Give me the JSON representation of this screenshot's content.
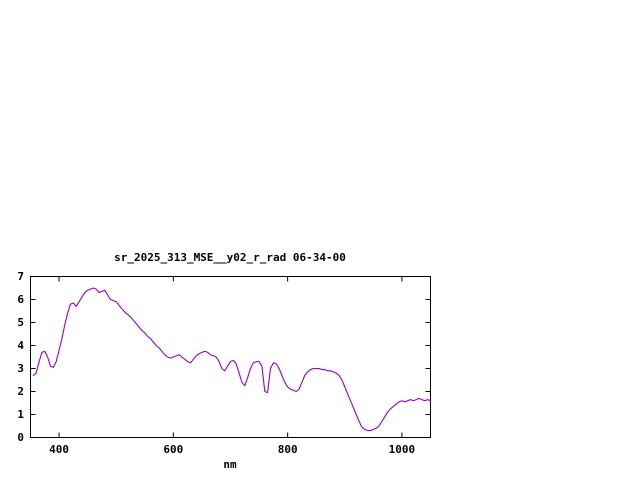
{
  "window": {
    "background": "#ffffff"
  },
  "chart_data": {
    "type": "line",
    "title": "sr_2025_313_MSE__y02_r_rad 06-34-00",
    "xlabel": "nm",
    "ylabel": "",
    "xlim": [
      350,
      1050
    ],
    "ylim": [
      0,
      7
    ],
    "xticks": [
      400,
      600,
      800,
      1000
    ],
    "yticks": [
      0,
      1,
      2,
      3,
      4,
      5,
      6,
      7
    ],
    "grid": false,
    "legend": "none",
    "line_color": "#9400d3",
    "axis_color": "#000000",
    "series": [
      {
        "name": "sr_2025_313_MSE__y02_r_rad",
        "x": [
          355,
          360,
          365,
          370,
          375,
          380,
          385,
          390,
          395,
          400,
          405,
          410,
          415,
          420,
          425,
          430,
          435,
          440,
          445,
          450,
          455,
          460,
          465,
          470,
          475,
          480,
          485,
          490,
          495,
          500,
          505,
          510,
          515,
          520,
          525,
          530,
          535,
          540,
          545,
          550,
          555,
          560,
          565,
          570,
          575,
          580,
          585,
          590,
          595,
          600,
          605,
          610,
          615,
          620,
          625,
          630,
          635,
          640,
          645,
          650,
          655,
          660,
          665,
          670,
          675,
          680,
          685,
          690,
          695,
          700,
          705,
          710,
          715,
          720,
          725,
          730,
          735,
          740,
          745,
          750,
          755,
          760,
          765,
          770,
          775,
          780,
          785,
          790,
          795,
          800,
          805,
          810,
          815,
          820,
          825,
          830,
          835,
          840,
          845,
          850,
          855,
          860,
          865,
          870,
          875,
          880,
          885,
          890,
          895,
          900,
          905,
          910,
          915,
          920,
          925,
          930,
          935,
          940,
          945,
          950,
          955,
          960,
          965,
          970,
          975,
          980,
          985,
          990,
          995,
          1000,
          1005,
          1010,
          1015,
          1020,
          1025,
          1030,
          1035,
          1040,
          1045,
          1050
        ],
        "y": [
          2.7,
          2.8,
          3.3,
          3.7,
          3.75,
          3.5,
          3.1,
          3.05,
          3.3,
          3.8,
          4.3,
          4.9,
          5.4,
          5.8,
          5.85,
          5.7,
          5.9,
          6.1,
          6.3,
          6.4,
          6.45,
          6.5,
          6.45,
          6.3,
          6.35,
          6.4,
          6.2,
          6.0,
          5.95,
          5.9,
          5.75,
          5.6,
          5.45,
          5.35,
          5.25,
          5.1,
          4.95,
          4.8,
          4.65,
          4.55,
          4.4,
          4.3,
          4.15,
          4.0,
          3.9,
          3.75,
          3.6,
          3.5,
          3.45,
          3.5,
          3.55,
          3.6,
          3.5,
          3.4,
          3.3,
          3.25,
          3.4,
          3.55,
          3.65,
          3.7,
          3.75,
          3.7,
          3.6,
          3.55,
          3.5,
          3.3,
          3.0,
          2.9,
          3.1,
          3.3,
          3.35,
          3.2,
          2.8,
          2.4,
          2.25,
          2.6,
          3.0,
          3.25,
          3.3,
          3.3,
          3.1,
          2.0,
          1.95,
          3.0,
          3.25,
          3.2,
          3.0,
          2.7,
          2.4,
          2.2,
          2.1,
          2.05,
          2.0,
          2.1,
          2.4,
          2.7,
          2.85,
          2.95,
          3.0,
          3.0,
          3.0,
          2.95,
          2.95,
          2.9,
          2.9,
          2.85,
          2.8,
          2.7,
          2.5,
          2.2,
          1.9,
          1.6,
          1.3,
          1.0,
          0.7,
          0.45,
          0.35,
          0.3,
          0.3,
          0.35,
          0.4,
          0.5,
          0.7,
          0.9,
          1.1,
          1.25,
          1.35,
          1.45,
          1.55,
          1.6,
          1.55,
          1.6,
          1.65,
          1.6,
          1.65,
          1.7,
          1.65,
          1.6,
          1.65,
          1.6
        ]
      }
    ]
  }
}
